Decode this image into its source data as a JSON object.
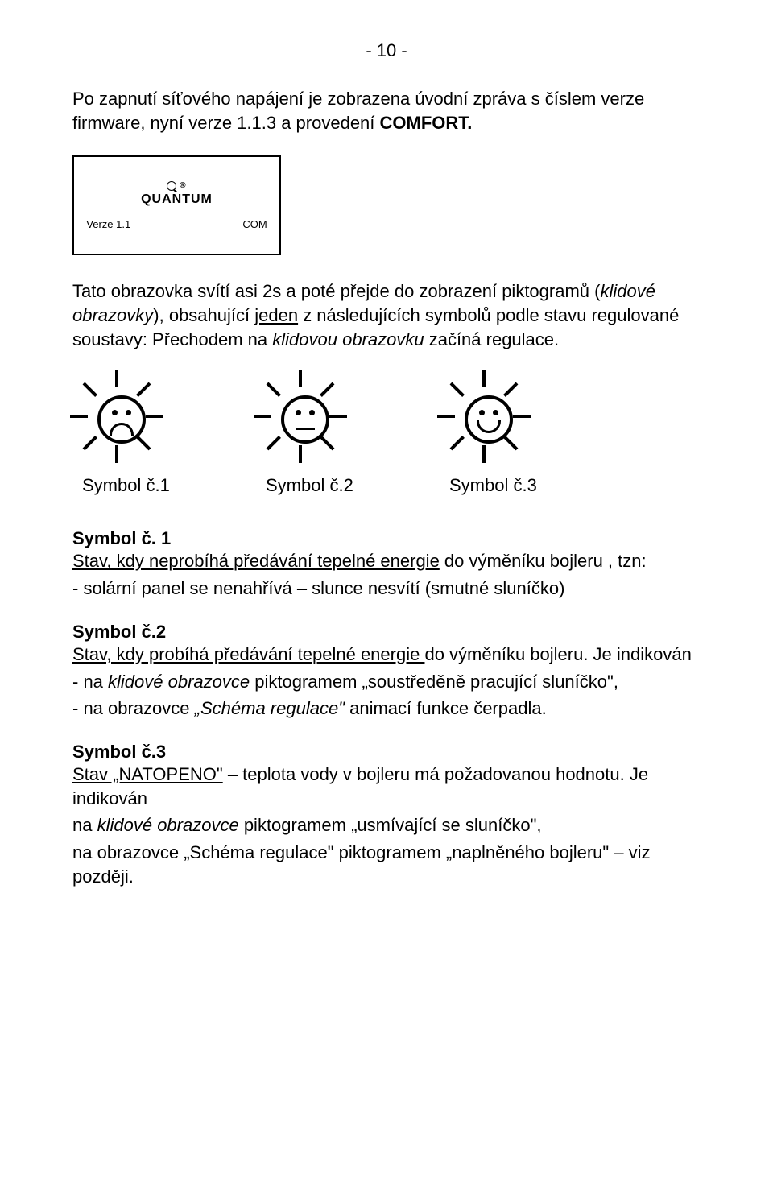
{
  "page_number": "- 10 -",
  "intro_para_parts": [
    {
      "text": "Po zapnutí síťového napájení  je zobrazena úvodní zpráva s číslem verze firmware, nyní verze 1.1.3 a provedení ",
      "bold": false
    },
    {
      "text": "COMFORT.",
      "bold": true
    }
  ],
  "lcd": {
    "brand": "QUANTUM",
    "reg": "®",
    "version": "Verze 1.1",
    "right": "COM"
  },
  "explain_para_parts": [
    {
      "text": "Tato obrazovka svítí asi 2s a poté přejde do zobrazení piktogramů ("
    },
    {
      "text": "klidové obrazovky",
      "italic": true
    },
    {
      "text": "), obsahující "
    },
    {
      "text": "jeden",
      "underline": true
    },
    {
      "text": " z následujících symbolů podle stavu regulované soustavy: Přechodem na "
    },
    {
      "text": "klidovou obrazovku",
      "italic": true
    },
    {
      "text": " začíná regulace."
    }
  ],
  "symbol_labels": {
    "s1": "Symbol č.1",
    "s2": "Symbol č.2",
    "s3": "Symbol č.3"
  },
  "sym1": {
    "head": "Symbol č. 1",
    "line1_parts": [
      {
        "text": "Stav, kdy neprobíhá předávání tepelné energie",
        "underline": true
      },
      {
        "text": " do výměníku bojleru , tzn:"
      }
    ],
    "bullet": "- solární panel se nenahřívá – slunce nesvítí (smutné sluníčko)"
  },
  "sym2": {
    "head": "Symbol č.2",
    "line1_parts": [
      {
        "text": "Stav, kdy probíhá předávání tepelné energie ",
        "underline": true
      },
      {
        "text": "do výměníku  bojleru. Je indikován"
      }
    ],
    "b1_parts": [
      {
        "text": "- na "
      },
      {
        "text": "klidové obrazovce",
        "italic": true
      },
      {
        "text": "  piktogramem „soustředěně pracující sluníčko\","
      }
    ],
    "b2_parts": [
      {
        "text": "- na obrazovce "
      },
      {
        "text": "„Schéma regulace\"",
        "italic": true
      },
      {
        "text": " animací funkce čerpadla."
      }
    ]
  },
  "sym3": {
    "head": "Symbol č.3",
    "line1_parts": [
      {
        "text": "Stav „NATOPENO\"",
        "underline": true
      },
      {
        "text": " – teplota vody v bojleru má požadovanou hodnotu. Je indikován"
      }
    ],
    "b1_parts": [
      {
        "text": "na "
      },
      {
        "text": "klidové obrazovce",
        "italic": true
      },
      {
        "text": "  piktogramem „usmívající se sluníčko\","
      }
    ],
    "b2": "na obrazovce „Schéma regulace\"  piktogramem „naplněného bojleru\" – viz později."
  }
}
